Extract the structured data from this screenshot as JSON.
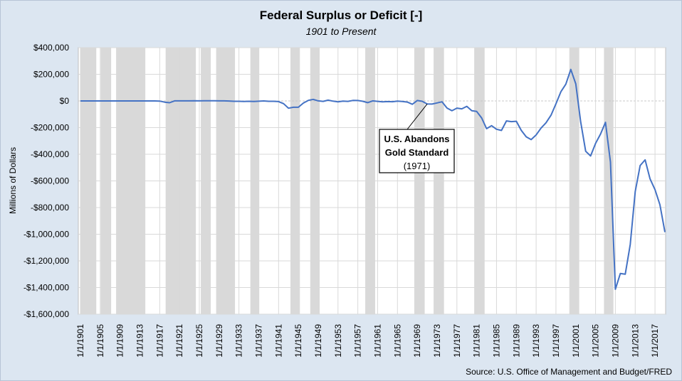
{
  "chart_data": {
    "type": "line",
    "title": "Federal Surplus or Deficit [-]",
    "subtitle": "1901 to Present",
    "ylabel": "Millions of Dollars",
    "source": "Source: U.S. Office of Management and Budget/FRED",
    "ylim": [
      -1600000,
      400000
    ],
    "y_ticks": [
      400000,
      200000,
      0,
      -200000,
      -400000,
      -600000,
      -800000,
      -1000000,
      -1200000,
      -1400000,
      -1600000
    ],
    "y_tick_labels": [
      "$400,000",
      "$200,000",
      "$0",
      "-$200,000",
      "-$400,000",
      "-$600,000",
      "-$800,000",
      "-$1,000,000",
      "-$1,200,000",
      "-$1,400,000",
      "-$1,600,000"
    ],
    "x_tick_labels": [
      "1/1/1901",
      "1/1/1905",
      "1/1/1909",
      "1/1/1913",
      "1/1/1917",
      "1/1/1921",
      "1/1/1925",
      "1/1/1929",
      "1/1/1933",
      "1/1/1937",
      "1/1/1941",
      "1/1/1945",
      "1/1/1949",
      "1/1/1953",
      "1/1/1957",
      "1/1/1961",
      "1/1/1965",
      "1/1/1969",
      "1/1/1973",
      "1/1/1977",
      "1/1/1981",
      "1/1/1985",
      "1/1/1989",
      "1/1/1993",
      "1/1/1997",
      "1/1/2001",
      "1/1/2005",
      "1/1/2009",
      "1/1/2013",
      "1/1/2017"
    ],
    "grid": true,
    "line_color": "#4472c4",
    "shading_color": "#d9d9d9",
    "recession_shading": [
      [
        1901,
        1904.2
      ],
      [
        1905.1,
        1907.2
      ],
      [
        1908.2,
        1914.1
      ],
      [
        1918.2,
        1924.3
      ],
      [
        1925.3,
        1927.3
      ],
      [
        1928.4,
        1932.2
      ],
      [
        1935.3,
        1937.1
      ],
      [
        1943.4,
        1945.3
      ],
      [
        1947.4,
        1949.3
      ],
      [
        1958.5,
        1960.5
      ],
      [
        1968.4,
        1970.5
      ],
      [
        1972.3,
        1974.4
      ],
      [
        1980.5,
        1982.6
      ],
      [
        1999.7,
        2001.7
      ],
      [
        2006.7,
        2008.6
      ]
    ],
    "series": [
      {
        "x": [
          1901,
          1902,
          1903,
          1904,
          1905,
          1906,
          1907,
          1908,
          1909,
          1910,
          1911,
          1912,
          1913,
          1914,
          1915,
          1916,
          1917,
          1918,
          1919,
          1920,
          1921,
          1922,
          1923,
          1924,
          1925,
          1926,
          1927,
          1928,
          1929,
          1930,
          1931,
          1932,
          1933,
          1934,
          1935,
          1936,
          1937,
          1938,
          1939,
          1940,
          1941,
          1942,
          1943,
          1944,
          1945,
          1946,
          1947,
          1948,
          1949,
          1950,
          1951,
          1952,
          1953,
          1954,
          1955,
          1956,
          1957,
          1958,
          1959,
          1960,
          1961,
          1962,
          1963,
          1964,
          1965,
          1966,
          1967,
          1968,
          1969,
          1970,
          1971,
          1972,
          1973,
          1974,
          1975,
          1976,
          1977,
          1978,
          1979,
          1980,
          1981,
          1982,
          1983,
          1984,
          1985,
          1986,
          1987,
          1988,
          1989,
          1990,
          1991,
          1992,
          1993,
          1994,
          1995,
          1996,
          1997,
          1998,
          1999,
          2000,
          2001,
          2002,
          2003,
          2004,
          2005,
          2006,
          2007,
          2008,
          2009,
          2010,
          2011,
          2012,
          2013,
          2014,
          2015,
          2016,
          2017,
          2018,
          2019
        ],
        "values": [
          63,
          99,
          45,
          -43,
          -23,
          25,
          87,
          -57,
          -89,
          -18,
          11,
          3,
          -1,
          -1,
          -63,
          48,
          -853,
          -9000,
          -13363,
          291,
          509,
          736,
          713,
          963,
          717,
          865,
          1155,
          939,
          734,
          738,
          -462,
          -2735,
          -2602,
          -3586,
          -2803,
          -4304,
          -2193,
          -89,
          -2846,
          -2920,
          -4941,
          -20503,
          -54554,
          -47557,
          -47553,
          -15936,
          4018,
          11796,
          580,
          -3119,
          6102,
          -1519,
          -6493,
          -1154,
          -2993,
          3947,
          3412,
          -2769,
          -12849,
          301,
          -3335,
          -7146,
          -4756,
          -5915,
          -1411,
          -3698,
          -8643,
          -25161,
          3242,
          -2842,
          -23033,
          -23373,
          -14908,
          -6135,
          -53242,
          -73732,
          -53659,
          -59185,
          -40726,
          -73830,
          -78968,
          -127977,
          -207802,
          -185367,
          -212308,
          -221227,
          -149730,
          -155178,
          -152639,
          -221036,
          -269238,
          -290321,
          -255051,
          -203186,
          -163952,
          -107431,
          -21884,
          69270,
          125610,
          236241,
          128236,
          -157758,
          -377585,
          -412727,
          -318346,
          -248181,
          -160701,
          -458553,
          -1412688,
          -1294373,
          -1299599,
          -1076573,
          -679775,
          -484600,
          -441960,
          -584651,
          -665446,
          -779137,
          -984388
        ]
      }
    ],
    "annotation": {
      "line1": "U.S. Abandons",
      "line2": "Gold Standard",
      "line3": "(1971)",
      "year": 1971
    }
  }
}
